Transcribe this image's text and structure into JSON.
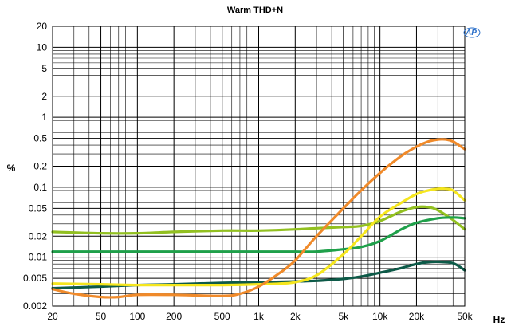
{
  "chart_data": {
    "type": "line",
    "title": "Warm THD+N",
    "xlabel": "Hz",
    "ylabel": "%",
    "xscale": "log",
    "yscale": "log",
    "xlim": [
      20,
      50000
    ],
    "ylim": [
      0.002,
      20
    ],
    "grid": true,
    "logo_text": "AP",
    "x_ticks": [
      {
        "value": 20,
        "label": "20"
      },
      {
        "value": 50,
        "label": "50"
      },
      {
        "value": 100,
        "label": "100"
      },
      {
        "value": 200,
        "label": "200"
      },
      {
        "value": 500,
        "label": "500"
      },
      {
        "value": 1000,
        "label": "1k"
      },
      {
        "value": 2000,
        "label": "2k"
      },
      {
        "value": 5000,
        "label": "5k"
      },
      {
        "value": 10000,
        "label": "10k"
      },
      {
        "value": 20000,
        "label": "20k"
      },
      {
        "value": 50000,
        "label": "50k"
      }
    ],
    "y_ticks": [
      {
        "value": 20,
        "label": "20"
      },
      {
        "value": 10,
        "label": "10"
      },
      {
        "value": 5,
        "label": "5"
      },
      {
        "value": 2,
        "label": "2"
      },
      {
        "value": 1,
        "label": "1"
      },
      {
        "value": 0.5,
        "label": "0.5"
      },
      {
        "value": 0.2,
        "label": "0.2"
      },
      {
        "value": 0.1,
        "label": "0.1"
      },
      {
        "value": 0.05,
        "label": "0.05"
      },
      {
        "value": 0.02,
        "label": "0.02"
      },
      {
        "value": 0.01,
        "label": "0.01"
      },
      {
        "value": 0.005,
        "label": "0.005"
      },
      {
        "value": 0.002,
        "label": "0.002"
      }
    ],
    "series": [
      {
        "color": "#92c020",
        "x": [
          20,
          50,
          100,
          200,
          500,
          1000,
          2000,
          3000,
          5000,
          7000,
          10000,
          15000,
          20000,
          25000,
          30000,
          40000,
          50000
        ],
        "y": [
          0.023,
          0.022,
          0.022,
          0.023,
          0.024,
          0.024,
          0.025,
          0.026,
          0.027,
          0.028,
          0.033,
          0.045,
          0.052,
          0.052,
          0.047,
          0.034,
          0.025
        ]
      },
      {
        "color": "#1fa04a",
        "x": [
          20,
          50,
          100,
          200,
          500,
          1000,
          2000,
          3000,
          5000,
          7000,
          10000,
          15000,
          20000,
          30000,
          40000,
          50000
        ],
        "y": [
          0.012,
          0.012,
          0.012,
          0.012,
          0.012,
          0.012,
          0.012,
          0.012,
          0.013,
          0.014,
          0.017,
          0.025,
          0.031,
          0.036,
          0.037,
          0.036
        ]
      },
      {
        "color": "#0d5a48",
        "x": [
          20,
          50,
          100,
          200,
          500,
          1000,
          2000,
          3000,
          5000,
          7000,
          10000,
          15000,
          20000,
          25000,
          30000,
          40000,
          50000
        ],
        "y": [
          0.0036,
          0.0038,
          0.004,
          0.0041,
          0.0043,
          0.0044,
          0.0045,
          0.0046,
          0.0049,
          0.0053,
          0.006,
          0.007,
          0.008,
          0.0085,
          0.0086,
          0.0082,
          0.0065
        ]
      },
      {
        "color": "#f5e61e",
        "x": [
          20,
          50,
          100,
          200,
          500,
          1000,
          1500,
          2000,
          3000,
          5000,
          7000,
          10000,
          15000,
          20000,
          25000,
          30000,
          35000,
          40000,
          50000
        ],
        "y": [
          0.0042,
          0.0041,
          0.004,
          0.004,
          0.004,
          0.0041,
          0.0042,
          0.0044,
          0.0055,
          0.011,
          0.02,
          0.038,
          0.06,
          0.08,
          0.09,
          0.095,
          0.095,
          0.09,
          0.065
        ]
      },
      {
        "color": "#f08a2a",
        "x": [
          20,
          30,
          50,
          70,
          100,
          200,
          500,
          700,
          1000,
          1500,
          2000,
          3000,
          5000,
          7000,
          10000,
          15000,
          20000,
          25000,
          30000,
          35000,
          40000,
          50000
        ],
        "y": [
          0.0035,
          0.003,
          0.0027,
          0.0027,
          0.0029,
          0.0029,
          0.0028,
          0.003,
          0.0038,
          0.006,
          0.009,
          0.02,
          0.05,
          0.09,
          0.16,
          0.28,
          0.38,
          0.45,
          0.48,
          0.48,
          0.45,
          0.35
        ]
      }
    ]
  }
}
